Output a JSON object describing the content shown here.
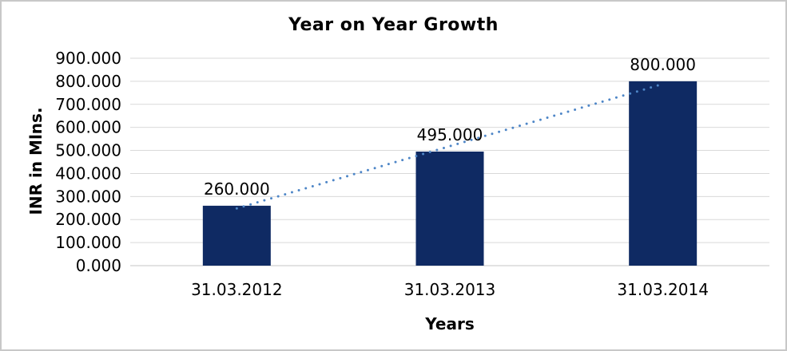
{
  "chart_data": {
    "type": "bar",
    "title": "Year on Year Growth",
    "xlabel": "Years",
    "ylabel": "INR in Mlns.",
    "categories": [
      "31.03.2012",
      "31.03.2013",
      "31.03.2014"
    ],
    "values": [
      260,
      495,
      800
    ],
    "data_labels": [
      "260.000",
      "495.000",
      "800.000"
    ],
    "y_tick_values": [
      0,
      100,
      200,
      300,
      400,
      500,
      600,
      700,
      800,
      900
    ],
    "y_tick_labels": [
      "0.000",
      "100.000",
      "200.000",
      "300.000",
      "400.000",
      "500.000",
      "600.000",
      "700.000",
      "800.000",
      "900.000"
    ],
    "ylim": [
      0,
      900
    ],
    "grid": true,
    "legend": "none",
    "trendline": {
      "type": "linear",
      "style": "dotted"
    },
    "colors": {
      "bar": "#0F2A63",
      "trendline": "#4E86C7",
      "gridline": "#D9D9D9",
      "axis_line": "#C6C6C6",
      "text": "#000000",
      "frame_border": "#C8C8C8",
      "background": "#FFFFFF"
    }
  }
}
